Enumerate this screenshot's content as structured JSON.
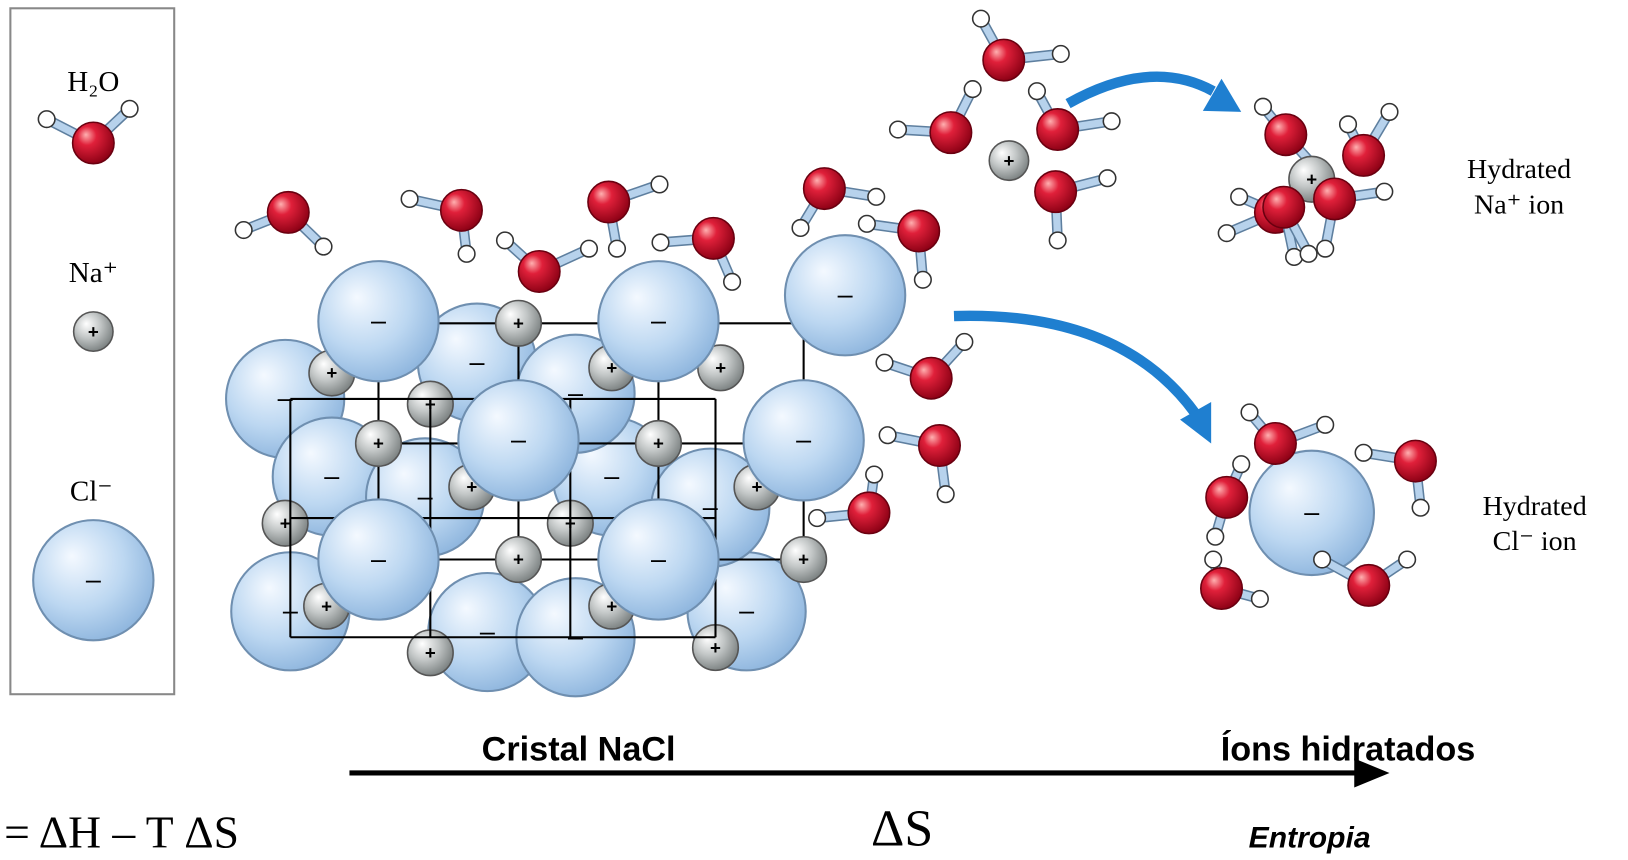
{
  "legend": {
    "water": "H₂O",
    "sodium": "Na⁺",
    "chloride": "Cl⁻"
  },
  "signs": {
    "cation": "+",
    "anion": "–"
  },
  "hydrated_na": {
    "line1": "Hydrated",
    "line2": "Na⁺ ion"
  },
  "hydrated_cl": {
    "line1": "Hydrated",
    "line2": "Cl⁻ ion"
  },
  "axis": {
    "start_label": "Cristal NaCl",
    "end_label": "Íons hidratados",
    "symbol": "ΔS",
    "caption": "Entropia"
  },
  "formula": "= ΔH – T ΔS"
}
